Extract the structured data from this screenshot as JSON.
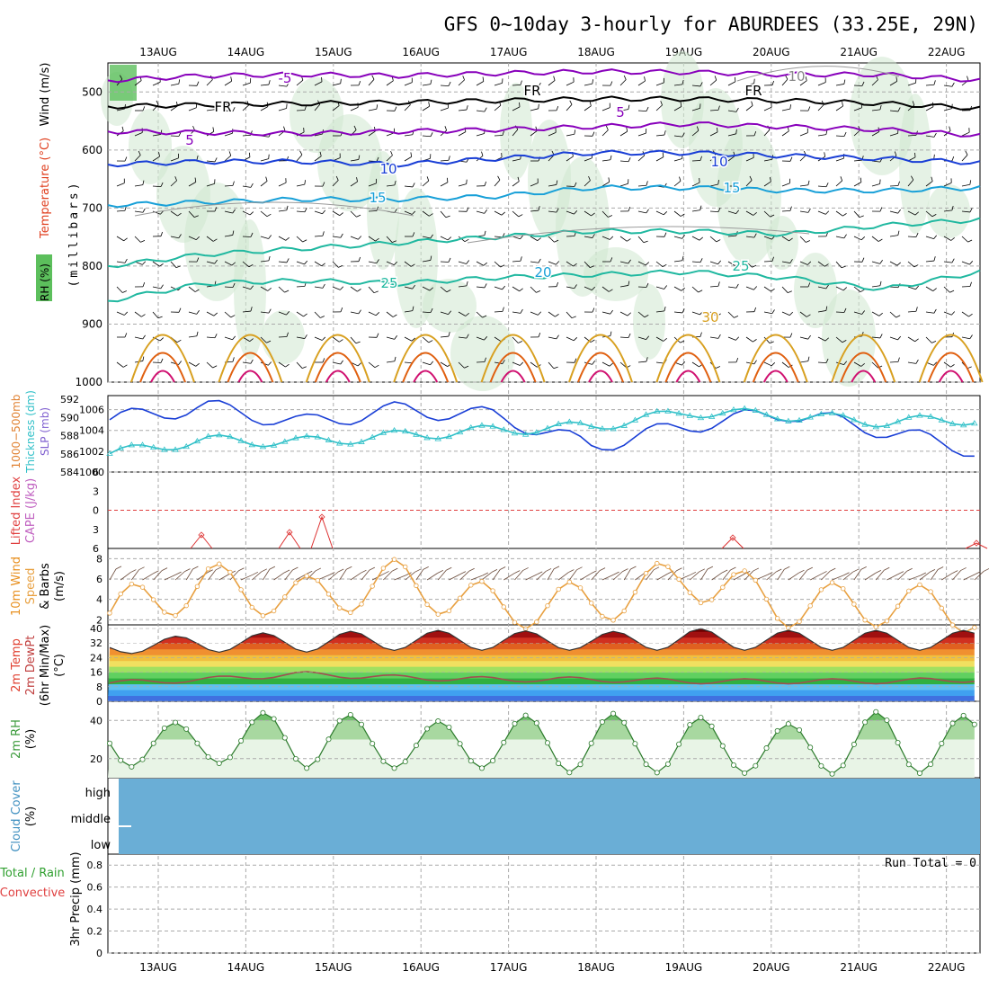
{
  "title": "GFS 0~10day 3-hourly for ABURDEES (33.25E, 29N)",
  "days": [
    "13AUG",
    "14AUG",
    "15AUG",
    "16AUG",
    "17AUG",
    "18AUG",
    "19AUG",
    "20AUG",
    "21AUG",
    "22AUG"
  ],
  "colors": {
    "temp_purple": "#8800bb",
    "temp_blue": "#1a3fd6",
    "temp_cyan": "#18a0d8",
    "temp_teal": "#20b8a0",
    "temp_gold": "#d8a020",
    "temp_orange": "#e06010",
    "rh_fill": "#cfe8cf",
    "slp": "#1a3fd6",
    "thick": "#30c0c8",
    "lifted": "#dd3030",
    "wind": "#e8a040",
    "rh2m": "#3a9a3a",
    "cloud": "#6aaed6"
  },
  "panels": {
    "upper": {
      "y_label_parts": [
        "Wind (m/s)",
        "Temperature (°C)",
        "RH (%)",
        "(millibars)"
      ],
      "ticks": [
        "500",
        "600",
        "700",
        "800",
        "900",
        "1000"
      ]
    },
    "slp": {
      "label_lines": [
        "1000−500mb",
        "Thickness (dm)",
        "SLP (mb)"
      ],
      "left_ticks": [
        "592",
        "590",
        "588",
        "586",
        "584"
      ],
      "right_ticks": [
        "1006",
        "1004",
        "1002",
        "1000"
      ]
    },
    "cape": {
      "label_lines": [
        "Lifted Index",
        "CAPE (J/kg)"
      ],
      "ticks": [
        "6",
        "3",
        "0",
        "3",
        "6"
      ]
    },
    "wind": {
      "label_lines": [
        "10m Wind",
        "Speed",
        "& Barbs",
        "(m/s)"
      ],
      "ticks": [
        "8",
        "6",
        "4",
        "2"
      ]
    },
    "temp": {
      "label_lines": [
        "2m Temp",
        "2m DewPt",
        "(6hr Min/Max)",
        "(°C)"
      ],
      "ticks": [
        "40",
        "32",
        "24",
        "16",
        "8",
        "0"
      ]
    },
    "rh": {
      "label_lines": [
        "2m RH",
        "(%)"
      ],
      "ticks": [
        "40",
        "20"
      ]
    },
    "cloud": {
      "label_lines": [
        "Cloud Cover",
        "(%)"
      ],
      "levels": [
        "high",
        "middle",
        "low"
      ]
    },
    "precip": {
      "label_lines": [
        "Total / Rain",
        "Convective",
        "3hr Precip (mm)"
      ],
      "ticks": [
        "0.8",
        "0.6",
        "0.4",
        "0.2",
        "0"
      ],
      "run_total": "Run Total = 0"
    }
  },
  "chart_data": [
    {
      "type": "line",
      "title": "GFS 0~10day 3-hourly for ABURDEES (33.25E, 29N)",
      "panel": "upper-air temperature (°C) vs pressure (mb)",
      "x": [
        "13AUG",
        "14AUG",
        "15AUG",
        "16AUG",
        "17AUG",
        "18AUG",
        "19AUG",
        "20AUG",
        "21AUG",
        "22AUG"
      ],
      "ylim": [
        1000,
        450
      ],
      "series": [
        {
          "name": "FR",
          "values": [
            525,
            522,
            520,
            518,
            515,
            512,
            512,
            515,
            520,
            528
          ]
        },
        {
          "name": "-5",
          "values": [
            480,
            472,
            470,
            472,
            468,
            465,
            466,
            470,
            470,
            480
          ]
        },
        {
          "name": "5",
          "values": [
            568,
            570,
            572,
            568,
            565,
            560,
            555,
            560,
            565,
            575
          ]
        },
        {
          "name": "10",
          "values": [
            625,
            620,
            620,
            625,
            615,
            605,
            605,
            610,
            615,
            622
          ]
        },
        {
          "name": "15",
          "values": [
            695,
            690,
            685,
            685,
            680,
            665,
            665,
            670,
            670,
            665
          ]
        },
        {
          "name": "20",
          "values": [
            800,
            780,
            770,
            760,
            750,
            740,
            740,
            745,
            730,
            720
          ]
        },
        {
          "name": "25",
          "values": [
            860,
            830,
            825,
            830,
            820,
            815,
            810,
            820,
            840,
            810
          ]
        }
      ],
      "labels": [
        "-5",
        "FR",
        "5",
        "10",
        "15",
        "20",
        "25",
        "30",
        "10"
      ]
    },
    {
      "type": "line",
      "panel": "SLP and thickness",
      "x": [
        "13AUG",
        "14AUG",
        "15AUG",
        "16AUG",
        "17AUG",
        "18AUG",
        "19AUG",
        "20AUG",
        "21AUG",
        "22AUG"
      ],
      "series": [
        {
          "name": "SLP (mb)",
          "values": [
            1005.0,
            1006.3,
            1004.7,
            1006.0,
            1005.4,
            1002.5,
            1004.5,
            1005.7,
            1004.0,
            1002.0
          ]
        },
        {
          "name": "1000-500mb Thickness (dm)",
          "values": [
            586.0,
            587.5,
            587.3,
            588.0,
            588.6,
            589.0,
            590.6,
            590.2,
            589.5,
            589.8
          ]
        }
      ],
      "ylim_left": [
        584,
        592
      ],
      "ylim_right": [
        1000,
        1007
      ]
    },
    {
      "type": "line",
      "panel": "Lifted Index",
      "x": [
        "13AUG",
        "14AUG",
        "15AUG",
        "16AUG",
        "17AUG",
        "18AUG",
        "19AUG",
        "20AUG",
        "21AUG",
        "22AUG"
      ],
      "series": [
        {
          "name": "Lifted Index",
          "values": [
            6,
            6,
            2,
            6,
            6,
            6,
            6,
            5,
            6,
            6
          ]
        }
      ],
      "ylim": [
        6,
        -6
      ]
    },
    {
      "type": "line",
      "panel": "10m wind speed (m/s)",
      "x": [
        "13AUG",
        "14AUG",
        "15AUG",
        "16AUG",
        "17AUG",
        "18AUG",
        "19AUG",
        "20AUG",
        "21AUG",
        "22AUG"
      ],
      "series": [
        {
          "name": "10m Wind Speed",
          "values": [
            2.6,
            5.5,
            4.0,
            5.8,
            3.2,
            3.6,
            6.2,
            3.4,
            3.5,
            2.8
          ]
        }
      ],
      "ylim": [
        1.5,
        9
      ]
    },
    {
      "type": "area",
      "panel": "2m temperature and dew point (°C)",
      "x": [
        "13AUG",
        "14AUG",
        "15AUG",
        "16AUG",
        "17AUG",
        "18AUG",
        "19AUG",
        "20AUG",
        "21AUG",
        "22AUG"
      ],
      "series": [
        {
          "name": "2m Temp max",
          "values": [
            33,
            37,
            38,
            39,
            39,
            38,
            40,
            39,
            39,
            39
          ]
        },
        {
          "name": "2m Temp min",
          "values": [
            26,
            27,
            27,
            28,
            28,
            28,
            28,
            28,
            28,
            28
          ]
        },
        {
          "name": "2m DewPt",
          "values": [
            10,
            12,
            15,
            13,
            12,
            12,
            11,
            11,
            11,
            12
          ]
        }
      ],
      "ylim": [
        0,
        42
      ]
    },
    {
      "type": "area",
      "panel": "2m RH (%)",
      "x": [
        "13AUG",
        "14AUG",
        "15AUG",
        "16AUG",
        "17AUG",
        "18AUG",
        "19AUG",
        "20AUG",
        "21AUG",
        "22AUG"
      ],
      "series": [
        {
          "name": "2m RH max",
          "values": [
            41,
            38,
            48,
            38,
            42,
            44,
            42,
            38,
            45,
            42
          ]
        },
        {
          "name": "2m RH min",
          "values": [
            15,
            18,
            15,
            15,
            15,
            12,
            13,
            12,
            12,
            13
          ]
        }
      ],
      "ylim": [
        10,
        50
      ]
    },
    {
      "type": "bar",
      "panel": "3hr precipitation (mm)",
      "x": [
        "13AUG",
        "14AUG",
        "15AUG",
        "16AUG",
        "17AUG",
        "18AUG",
        "19AUG",
        "20AUG",
        "21AUG",
        "22AUG"
      ],
      "values": [
        0,
        0,
        0,
        0,
        0,
        0,
        0,
        0,
        0,
        0
      ],
      "ylim": [
        0,
        0.9
      ]
    }
  ]
}
